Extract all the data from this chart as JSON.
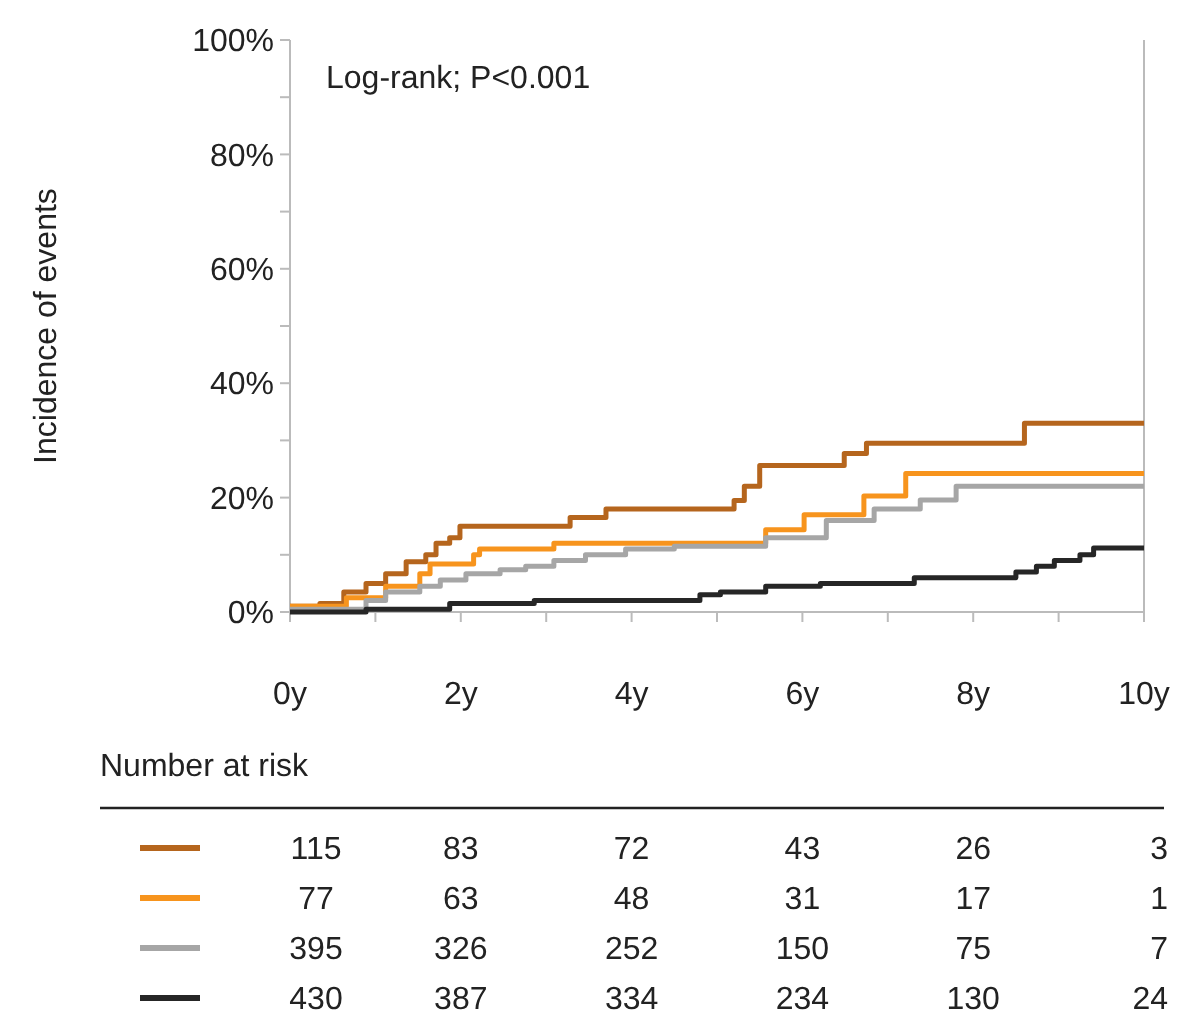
{
  "chart_data": {
    "type": "step",
    "ylabel": "Incidence of events",
    "xlim": [
      0,
      10
    ],
    "xticks": [
      {
        "value": 0,
        "label": "0y"
      },
      {
        "value": 1,
        "label": null
      },
      {
        "value": 2,
        "label": "2y"
      },
      {
        "value": 3,
        "label": null
      },
      {
        "value": 4,
        "label": "4y"
      },
      {
        "value": 5,
        "label": null
      },
      {
        "value": 6,
        "label": "6y"
      },
      {
        "value": 7,
        "label": null
      },
      {
        "value": 8,
        "label": "8y"
      },
      {
        "value": 9,
        "label": null
      },
      {
        "value": 10,
        "label": "10y"
      }
    ],
    "ylim": [
      0,
      100
    ],
    "yticks": [
      {
        "value": 0,
        "label": "0%"
      },
      {
        "value": 10,
        "label": null
      },
      {
        "value": 20,
        "label": "20%"
      },
      {
        "value": 30,
        "label": null
      },
      {
        "value": 40,
        "label": "40%"
      },
      {
        "value": 50,
        "label": null
      },
      {
        "value": 60,
        "label": "60%"
      },
      {
        "value": 70,
        "label": null
      },
      {
        "value": 80,
        "label": "80%"
      },
      {
        "value": 90,
        "label": null
      },
      {
        "value": 100,
        "label": "100%"
      }
    ],
    "grid": false,
    "marker": "none",
    "line_style": "solid",
    "series": [
      {
        "color": "#b5651d",
        "x": [
          0,
          0.35,
          0.63,
          0.89,
          1.12,
          1.36,
          1.59,
          1.71,
          1.87,
          1.99,
          3.28,
          3.7,
          5.2,
          5.32,
          5.5,
          6.49,
          6.75,
          8.6,
          10
        ],
        "values": [
          1,
          1.5,
          3.5,
          5,
          6.7,
          8.8,
          10,
          12,
          13,
          15,
          16.5,
          18,
          19.5,
          22,
          25.6,
          27.7,
          29.5,
          33,
          33
        ]
      },
      {
        "color": "#f7941d",
        "x": [
          0,
          0.66,
          1.12,
          1.52,
          1.64,
          2.15,
          2.22,
          3.09,
          5.57,
          6.02,
          6.72,
          7.21,
          10
        ],
        "values": [
          1,
          2.5,
          4.5,
          6.7,
          8.4,
          10,
          11,
          12,
          14.4,
          17,
          20.3,
          24.2,
          24.2
        ]
      },
      {
        "color": "#a6a6a6",
        "x": [
          0,
          0.89,
          1.12,
          1.52,
          1.76,
          2.06,
          2.46,
          2.76,
          3.09,
          3.46,
          3.93,
          4.5,
          5.57,
          6.28,
          6.84,
          7.38,
          7.8,
          10
        ],
        "values": [
          0.5,
          2,
          3.5,
          4.5,
          5.6,
          6.7,
          7.4,
          8,
          9,
          10,
          11,
          11.5,
          13,
          16,
          18,
          19.6,
          22,
          22
        ]
      },
      {
        "color": "#262626",
        "x": [
          0,
          0.89,
          1.87,
          2.86,
          4.8,
          5.04,
          5.57,
          6.21,
          7.31,
          8.5,
          8.74,
          8.95,
          9.25,
          9.41,
          10
        ],
        "values": [
          0,
          0.5,
          1.5,
          2,
          3,
          3.5,
          4.5,
          5,
          6,
          7,
          8,
          9,
          10,
          11.2,
          11.2
        ]
      }
    ],
    "annotations": [
      "Log-rank; P<0.001",
      "Number at risk",
      "115",
      "83",
      "72",
      "43",
      "26",
      "3",
      "77",
      "63",
      "48",
      "31",
      "17",
      "1",
      "395",
      "326",
      "252",
      "150",
      "75",
      "7",
      "430",
      "387",
      "334",
      "234",
      "130",
      "24"
    ]
  }
}
